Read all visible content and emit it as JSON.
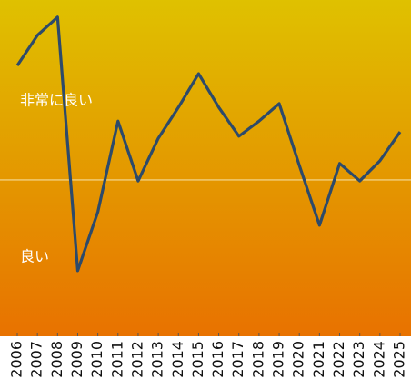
{
  "chart_data": {
    "type": "line",
    "categories": [
      "2006",
      "2007",
      "2008",
      "2009",
      "2010",
      "2011",
      "2012",
      "2013",
      "2014",
      "2015",
      "2016",
      "2017",
      "2018",
      "2019",
      "2020",
      "2021",
      "2022",
      "2023",
      "2024",
      "2025"
    ],
    "series": [
      {
        "color": "#2d4a6a",
        "values": [
          80.5,
          89.5,
          94.9,
          19.5,
          37,
          64,
          46.2,
          58.9,
          68.1,
          78.1,
          68.1,
          59.5,
          64,
          69.2,
          50.8,
          33,
          51.4,
          46.2,
          52.2,
          60.8
        ]
      }
    ],
    "ylim": [
      0,
      100
    ],
    "reference_line": 46.5,
    "annotations": [
      {
        "text": "非常に良い",
        "y": 70
      },
      {
        "text": "良い",
        "y": 23.5
      }
    ],
    "background_colors": [
      "#dfc100",
      "#e87200"
    ]
  }
}
